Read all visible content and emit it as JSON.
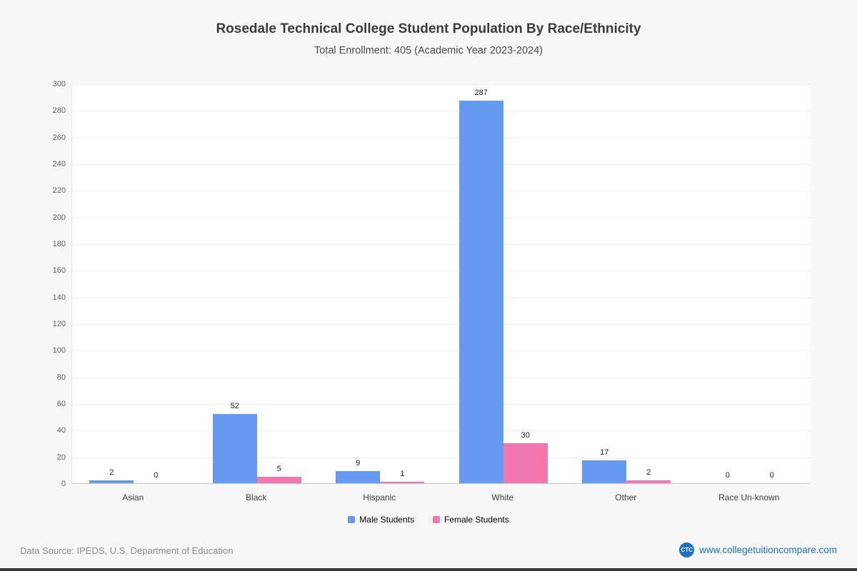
{
  "title": "Rosedale Technical College Student Population By Race/Ethnicity",
  "subtitle": "Total Enrollment: 405 (Academic Year 2023-2024)",
  "chart_data": {
    "type": "bar",
    "categories": [
      "Asian",
      "Black",
      "Hispanic",
      "White",
      "Other",
      "Race Un-known"
    ],
    "series": [
      {
        "name": "Male Students",
        "color": "#6699f0",
        "values": [
          2,
          52,
          9,
          287,
          17,
          0
        ]
      },
      {
        "name": "Female Students",
        "color": "#f077af",
        "values": [
          0,
          5,
          1,
          30,
          2,
          0
        ]
      }
    ],
    "ylim": [
      0,
      300
    ],
    "ytick_step": 20,
    "grid": true,
    "legend_position": "bottom",
    "xlabel": "",
    "ylabel": ""
  },
  "legend": {
    "male_label": "Male Students",
    "female_label": "Female Students"
  },
  "footer": {
    "source": "Data Source: IPEDS, U.S. Department of Education",
    "logo_text": "CTC",
    "website": "www.collegetuitioncompare.com"
  },
  "colors": {
    "male": "#6699f0",
    "female": "#f077af",
    "link": "#1e6fbf"
  }
}
